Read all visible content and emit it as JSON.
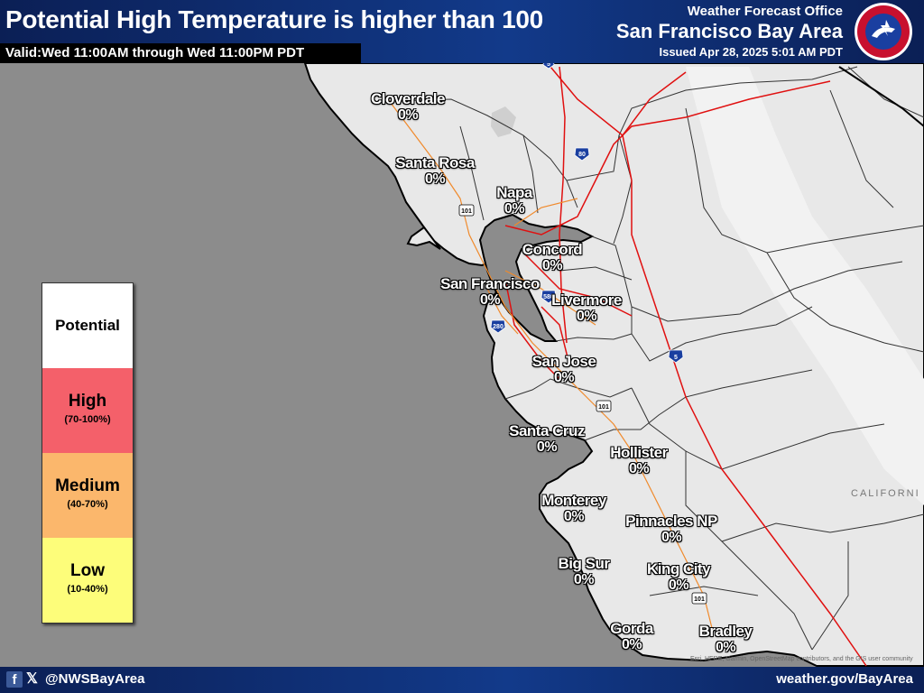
{
  "header": {
    "title": "Potential High Temperature is higher than 100",
    "valid": "Valid:Wed 11:00AM through Wed 11:00PM PDT",
    "office_line1": "Weather Forecast Office",
    "office_line2": "San Francisco Bay Area",
    "issued": "Issued Apr 28, 2025 5:01 AM PDT"
  },
  "legend": {
    "potential": "Potential",
    "high": "High",
    "high_range": "(70-100%)",
    "medium": "Medium",
    "medium_range": "(40-70%)",
    "low": "Low",
    "low_range": "(10-40%)",
    "colors": {
      "potential": "#ffffff",
      "high": "#f4606a",
      "medium": "#fbb76c",
      "low": "#fdfd7a"
    }
  },
  "cities": [
    {
      "name": "Cloverdale",
      "value": "0%"
    },
    {
      "name": "Santa Rosa",
      "value": "0%"
    },
    {
      "name": "Napa",
      "value": "0%"
    },
    {
      "name": "Concord",
      "value": "0%"
    },
    {
      "name": "San Francisco",
      "value": "0%"
    },
    {
      "name": "Livermore",
      "value": "0%"
    },
    {
      "name": "San Jose",
      "value": "0%"
    },
    {
      "name": "Santa Cruz",
      "value": "0%"
    },
    {
      "name": "Hollister",
      "value": "0%"
    },
    {
      "name": "Monterey",
      "value": "0%"
    },
    {
      "name": "Pinnacles NP",
      "value": "0%"
    },
    {
      "name": "Big Sur",
      "value": "0%"
    },
    {
      "name": "King City",
      "value": "0%"
    },
    {
      "name": "Gorda",
      "value": "0%"
    },
    {
      "name": "Bradley",
      "value": "0%"
    }
  ],
  "map": {
    "state_label": "CALIFORNI",
    "attribution": "Esri, HERE, Garmin, OpenStreetMap contributors, and the GIS user community",
    "highways": [
      "5",
      "80",
      "101",
      "280",
      "580",
      "5",
      "101",
      "101"
    ]
  },
  "footer": {
    "facebook_icon": "f",
    "x_icon": "𝕏",
    "handle": "@NWSBayArea",
    "website": "weather.gov/BayArea"
  }
}
